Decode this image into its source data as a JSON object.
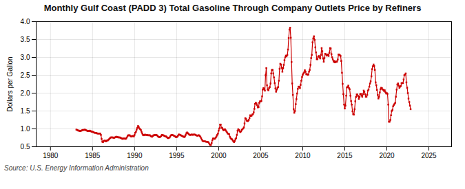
{
  "chart_data": {
    "type": "line",
    "title": "Monthly Gulf Coast (PADD 3) Total Gasoline Through Company Outlets Price by Refiners",
    "ylabel": "Dollars per Gallon",
    "annotations": [
      "Source: U.S. Energy Information Administration"
    ],
    "color": "#cc0000",
    "marker": "square",
    "line_style": "solid",
    "grid": true,
    "xlim": [
      1978.3,
      2027.7
    ],
    "xticks": [
      1980,
      1985,
      1990,
      1995,
      2000,
      2005,
      2010,
      2015,
      2020,
      2025
    ],
    "ylim": [
      0.5,
      4.0
    ],
    "yticks": [
      0.5,
      {
        "value": 1.0,
        "label": "1.0"
      },
      1.5,
      {
        "value": 2.0,
        "label": "2.0"
      },
      2.5,
      {
        "value": 3.0,
        "label": "3.0"
      },
      3.5,
      {
        "value": 4.0,
        "label": "4.0"
      }
    ],
    "x": [
      1983.08,
      1983.17,
      1983.25,
      1983.33,
      1983.42,
      1983.5,
      1983.58,
      1983.67,
      1983.75,
      1983.83,
      1983.92,
      1984.0,
      1984.08,
      1984.17,
      1984.25,
      1984.33,
      1984.42,
      1984.5,
      1984.58,
      1984.67,
      1984.75,
      1984.83,
      1984.92,
      1985.0,
      1985.08,
      1985.17,
      1985.25,
      1985.33,
      1985.42,
      1985.5,
      1985.58,
      1985.67,
      1985.75,
      1985.83,
      1985.92,
      1986.0,
      1986.08,
      1986.17,
      1986.25,
      1986.33,
      1986.42,
      1986.5,
      1986.58,
      1986.67,
      1986.75,
      1986.83,
      1986.92,
      1987.0,
      1987.08,
      1987.17,
      1987.25,
      1987.33,
      1987.42,
      1987.5,
      1987.58,
      1987.67,
      1987.75,
      1987.83,
      1987.92,
      1988.0,
      1988.08,
      1988.17,
      1988.25,
      1988.33,
      1988.42,
      1988.5,
      1988.58,
      1988.67,
      1988.75,
      1988.83,
      1988.92,
      1989.0,
      1989.08,
      1989.17,
      1989.25,
      1989.33,
      1989.42,
      1989.5,
      1989.58,
      1989.67,
      1989.75,
      1989.83,
      1989.92,
      1990.0,
      1990.08,
      1990.17,
      1990.25,
      1990.33,
      1990.42,
      1990.5,
      1990.58,
      1990.67,
      1990.75,
      1990.83,
      1990.92,
      1991.0,
      1991.08,
      1991.17,
      1991.25,
      1991.33,
      1991.42,
      1991.5,
      1991.58,
      1991.67,
      1991.75,
      1991.83,
      1991.92,
      1992.0,
      1992.08,
      1992.17,
      1992.25,
      1992.33,
      1992.42,
      1992.5,
      1992.58,
      1992.67,
      1992.75,
      1992.83,
      1992.92,
      1993.0,
      1993.08,
      1993.17,
      1993.25,
      1993.33,
      1993.42,
      1993.5,
      1993.58,
      1993.67,
      1993.75,
      1993.83,
      1993.92,
      1994.0,
      1994.08,
      1994.17,
      1994.25,
      1994.33,
      1994.42,
      1994.5,
      1994.58,
      1994.67,
      1994.75,
      1994.83,
      1994.92,
      1995.0,
      1995.08,
      1995.17,
      1995.25,
      1995.33,
      1995.42,
      1995.5,
      1995.58,
      1995.67,
      1995.75,
      1995.83,
      1995.92,
      1996.0,
      1996.08,
      1996.17,
      1996.25,
      1996.33,
      1996.42,
      1996.5,
      1996.58,
      1996.67,
      1996.75,
      1996.83,
      1996.92,
      1997.0,
      1997.08,
      1997.17,
      1997.25,
      1997.33,
      1997.42,
      1997.5,
      1997.58,
      1997.67,
      1997.75,
      1997.83,
      1997.92,
      1998.0,
      1998.08,
      1998.17,
      1998.25,
      1998.33,
      1998.42,
      1998.5,
      1998.58,
      1998.67,
      1998.75,
      1998.83,
      1998.92,
      1999.0,
      1999.08,
      1999.17,
      1999.25,
      1999.33,
      1999.42,
      1999.5,
      1999.58,
      1999.67,
      1999.75,
      1999.83,
      1999.92,
      2000.0,
      2000.08,
      2000.17,
      2000.25,
      2000.33,
      2000.42,
      2000.5,
      2000.58,
      2000.67,
      2000.75,
      2000.83,
      2000.92,
      2001.0,
      2001.08,
      2001.17,
      2001.25,
      2001.33,
      2001.42,
      2001.5,
      2001.58,
      2001.67,
      2001.75,
      2001.83,
      2001.92,
      2002.0,
      2002.08,
      2002.17,
      2002.25,
      2002.33,
      2002.42,
      2002.5,
      2002.58,
      2002.67,
      2002.75,
      2002.83,
      2002.92,
      2003.0,
      2003.08,
      2003.17,
      2003.25,
      2003.33,
      2003.42,
      2003.5,
      2003.58,
      2003.67,
      2003.75,
      2003.83,
      2003.92,
      2004.0,
      2004.08,
      2004.17,
      2004.25,
      2004.33,
      2004.42,
      2004.5,
      2004.58,
      2004.67,
      2004.75,
      2004.83,
      2004.92,
      2005.0,
      2005.08,
      2005.17,
      2005.25,
      2005.33,
      2005.42,
      2005.5,
      2005.58,
      2005.67,
      2005.75,
      2005.83,
      2005.92,
      2006.0,
      2006.08,
      2006.17,
      2006.25,
      2006.33,
      2006.42,
      2006.5,
      2006.58,
      2006.67,
      2006.75,
      2006.83,
      2006.92,
      2007.0,
      2007.08,
      2007.17,
      2007.25,
      2007.33,
      2007.42,
      2007.5,
      2007.58,
      2007.67,
      2007.75,
      2007.83,
      2007.92,
      2008.0,
      2008.08,
      2008.17,
      2008.25,
      2008.33,
      2008.42,
      2008.5,
      2008.58,
      2008.67,
      2008.75,
      2008.83,
      2008.92,
      2009.0,
      2009.08,
      2009.17,
      2009.25,
      2009.33,
      2009.42,
      2009.5,
      2009.58,
      2009.67,
      2009.75,
      2009.83,
      2009.92,
      2010.0,
      2010.08,
      2010.17,
      2010.25,
      2010.33,
      2010.42,
      2010.5,
      2010.58,
      2010.67,
      2010.75,
      2010.83,
      2010.92,
      2011.0,
      2011.08,
      2011.17,
      2011.25,
      2011.33,
      2011.42,
      2011.5,
      2011.58,
      2011.67,
      2011.75,
      2011.83,
      2011.92,
      2012.0,
      2012.08,
      2012.17,
      2012.25,
      2012.33,
      2012.42,
      2012.5,
      2012.58,
      2012.67,
      2012.75,
      2012.83,
      2012.92,
      2013.0,
      2013.08,
      2013.17,
      2013.25,
      2013.33,
      2013.42,
      2013.5,
      2013.58,
      2013.67,
      2013.75,
      2013.83,
      2013.92,
      2014.0,
      2014.08,
      2014.17,
      2014.25,
      2014.33,
      2014.42,
      2014.5,
      2014.58,
      2014.67,
      2014.75,
      2014.83,
      2014.92,
      2015.0,
      2015.08,
      2015.17,
      2015.25,
      2015.33,
      2015.42,
      2015.5,
      2015.58,
      2015.67,
      2015.75,
      2015.83,
      2015.92,
      2016.0,
      2016.08,
      2016.17,
      2016.25,
      2016.33,
      2016.42,
      2016.5,
      2016.58,
      2016.67,
      2016.75,
      2016.83,
      2016.92,
      2017.0,
      2017.08,
      2017.17,
      2017.25,
      2017.33,
      2017.42,
      2017.5,
      2017.58,
      2017.67,
      2017.75,
      2017.83,
      2017.92,
      2018.0,
      2018.08,
      2018.17,
      2018.25,
      2018.33,
      2018.42,
      2018.5,
      2018.58,
      2018.67,
      2018.75,
      2018.83,
      2018.92,
      2019.0,
      2019.08,
      2019.17,
      2019.25,
      2019.33,
      2019.42,
      2019.5,
      2019.58,
      2019.67,
      2019.75,
      2019.83,
      2019.92,
      2020.0,
      2020.08,
      2020.17,
      2020.25,
      2020.33,
      2020.42,
      2020.5,
      2020.58,
      2020.67,
      2020.75,
      2020.83,
      2020.92,
      2021.0,
      2021.08,
      2021.17,
      2021.25,
      2021.33,
      2021.42,
      2021.5,
      2021.58,
      2021.67,
      2021.75,
      2021.83,
      2021.92,
      2022.0,
      2022.08,
      2022.17,
      2022.25,
      2022.33,
      2022.42,
      2022.5,
      2022.58,
      2022.67,
      2022.75,
      2022.83
    ],
    "values": [
      0.98,
      0.97,
      0.96,
      0.95,
      0.95,
      0.94,
      0.94,
      0.95,
      0.96,
      0.97,
      0.97,
      0.97,
      0.98,
      0.97,
      0.96,
      0.95,
      0.94,
      0.94,
      0.94,
      0.95,
      0.94,
      0.93,
      0.92,
      0.92,
      0.91,
      0.9,
      0.89,
      0.89,
      0.89,
      0.88,
      0.87,
      0.87,
      0.87,
      0.87,
      0.87,
      0.83,
      0.72,
      0.64,
      0.63,
      0.66,
      0.67,
      0.67,
      0.65,
      0.66,
      0.68,
      0.68,
      0.7,
      0.72,
      0.74,
      0.76,
      0.76,
      0.76,
      0.76,
      0.75,
      0.75,
      0.76,
      0.77,
      0.78,
      0.77,
      0.77,
      0.76,
      0.76,
      0.76,
      0.75,
      0.74,
      0.73,
      0.72,
      0.73,
      0.73,
      0.73,
      0.72,
      0.73,
      0.76,
      0.8,
      0.82,
      0.82,
      0.82,
      0.8,
      0.79,
      0.79,
      0.8,
      0.8,
      0.79,
      0.83,
      0.89,
      0.92,
      0.98,
      1.03,
      1.08,
      1.05,
      1.01,
      0.99,
      0.97,
      0.92,
      0.87,
      0.83,
      0.82,
      0.83,
      0.84,
      0.83,
      0.83,
      0.83,
      0.82,
      0.82,
      0.82,
      0.82,
      0.8,
      0.79,
      0.78,
      0.8,
      0.82,
      0.82,
      0.83,
      0.83,
      0.83,
      0.82,
      0.8,
      0.78,
      0.77,
      0.77,
      0.78,
      0.8,
      0.83,
      0.83,
      0.82,
      0.81,
      0.8,
      0.79,
      0.79,
      0.77,
      0.75,
      0.74,
      0.75,
      0.76,
      0.79,
      0.82,
      0.83,
      0.83,
      0.82,
      0.81,
      0.8,
      0.79,
      0.77,
      0.77,
      0.78,
      0.81,
      0.84,
      0.84,
      0.83,
      0.82,
      0.81,
      0.8,
      0.79,
      0.78,
      0.77,
      0.79,
      0.83,
      0.88,
      0.9,
      0.88,
      0.86,
      0.84,
      0.83,
      0.83,
      0.84,
      0.84,
      0.83,
      0.84,
      0.84,
      0.84,
      0.83,
      0.82,
      0.81,
      0.81,
      0.82,
      0.82,
      0.8,
      0.78,
      0.74,
      0.7,
      0.67,
      0.65,
      0.65,
      0.65,
      0.65,
      0.64,
      0.64,
      0.64,
      0.63,
      0.61,
      0.57,
      0.55,
      0.55,
      0.6,
      0.68,
      0.73,
      0.73,
      0.72,
      0.73,
      0.76,
      0.79,
      0.83,
      0.87,
      0.95,
      1.01,
      1.12,
      1.12,
      1.03,
      1.03,
      0.99,
      0.96,
      0.98,
      0.99,
      0.96,
      0.93,
      0.9,
      0.87,
      0.86,
      0.85,
      0.78,
      0.74,
      0.72,
      0.71,
      0.68,
      0.65,
      0.63,
      0.66,
      0.71,
      0.74,
      0.83,
      0.95,
      0.99,
      0.97,
      0.93,
      0.91,
      0.93,
      0.97,
      0.99,
      1.01,
      1.04,
      1.15,
      1.3,
      1.28,
      1.23,
      1.22,
      1.22,
      1.25,
      1.3,
      1.38,
      1.36,
      1.37,
      1.4,
      1.41,
      1.46,
      1.56,
      1.7,
      1.73,
      1.71,
      1.66,
      1.6,
      1.61,
      1.73,
      1.77,
      1.77,
      1.78,
      1.91,
      2.1,
      2.14,
      2.11,
      2.07,
      2.5,
      2.7,
      2.22,
      2.1,
      2.08,
      2.14,
      2.17,
      2.27,
      2.55,
      2.65,
      2.65,
      2.55,
      2.44,
      2.28,
      2.13,
      2.04,
      2.1,
      2.15,
      2.17,
      2.35,
      2.68,
      2.82,
      2.8,
      2.71,
      2.6,
      2.7,
      2.79,
      2.92,
      3.0,
      3.05,
      3.03,
      3.07,
      3.22,
      3.54,
      3.78,
      3.83,
      3.55,
      2.87,
      2.27,
      1.95,
      1.55,
      1.45,
      1.5,
      1.69,
      1.83,
      1.99,
      2.12,
      2.18,
      2.18,
      2.14,
      2.23,
      2.35,
      2.45,
      2.51,
      2.55,
      2.58,
      2.64,
      2.6,
      2.53,
      2.53,
      2.51,
      2.52,
      2.6,
      2.65,
      2.79,
      2.98,
      3.07,
      3.42,
      3.53,
      3.59,
      3.49,
      3.28,
      3.14,
      2.95,
      2.95,
      3.02,
      3.04,
      3.0,
      2.97,
      3.07,
      3.26,
      3.17,
      2.97,
      2.88,
      2.98,
      3.1,
      3.09,
      3.05,
      3.06,
      3.08,
      3.04,
      3.13,
      3.26,
      3.25,
      3.09,
      3.0,
      2.94,
      2.88,
      2.9,
      2.86,
      2.87,
      2.89,
      2.88,
      2.94,
      3.08,
      3.08,
      3.06,
      3.04,
      2.9,
      2.57,
      2.26,
      1.97,
      1.68,
      1.57,
      1.65,
      1.93,
      2.16,
      2.17,
      2.21,
      2.14,
      2.11,
      1.93,
      1.78,
      1.68,
      1.49,
      1.41,
      1.4,
      1.55,
      1.77,
      1.89,
      1.96,
      1.96,
      1.92,
      1.84,
      1.89,
      1.97,
      1.98,
      1.93,
      1.9,
      1.97,
      2.07,
      2.04,
      1.97,
      1.9,
      1.9,
      1.95,
      2.07,
      2.1,
      2.18,
      2.27,
      2.33,
      2.47,
      2.67,
      2.75,
      2.8,
      2.76,
      2.65,
      2.3,
      2.22,
      2.09,
      1.95,
      1.85,
      1.9,
      2.02,
      2.11,
      2.15,
      2.14,
      2.1,
      2.1,
      2.06,
      2.08,
      2.03,
      1.99,
      2.0,
      1.98,
      1.68,
      1.2,
      1.2,
      1.25,
      1.38,
      1.5,
      1.53,
      1.63,
      1.67,
      1.7,
      1.73,
      1.9,
      2.1,
      2.24,
      2.27,
      2.21,
      2.15,
      2.18,
      2.2,
      2.28,
      2.28,
      2.28,
      2.38,
      2.5,
      2.52,
      2.55,
      2.3,
      2.15,
      2.0,
      1.85,
      1.75,
      1.65,
      1.55
    ]
  }
}
